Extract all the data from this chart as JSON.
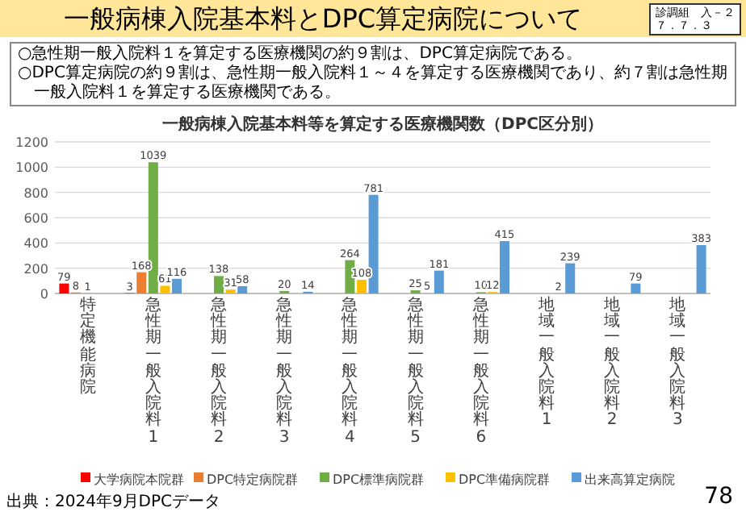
{
  "chart_data": {
    "type": "bar",
    "title": "一般病棟入院基本料とDPC算定病院について",
    "subtitle": "一般病棟入院基本料等を算定する医療機関数（DPC区分別）",
    "annotations": [
      "○急性期一般入院料１を算定する医療機関の約９割は、DPC算定病院である。",
      "○DPC算定病院の約９割は、急性期一般入院料１～４を算定する医療機関であり、約７割は急性期一般入院料１を算定する医療機関である。",
      "診調組　入－２",
      "７．７．３",
      "出典：2024年9月DPCデータ",
      "78"
    ],
    "categories": [
      "特定機能病院",
      "急性期一般入院料1",
      "急性期一般入院料2",
      "急性期一般入院料3",
      "急性期一般入院料4",
      "急性期一般入院料5",
      "急性期一般入院料6",
      "地域一般入院料1",
      "地域一般入院料2",
      "地域一般入院料3"
    ],
    "series": [
      {
        "name": "大学病院本院群",
        "color": "#ff0000",
        "values": [
          79,
          3,
          null,
          null,
          null,
          null,
          null,
          null,
          null,
          null
        ]
      },
      {
        "name": "DPC特定病院群",
        "color": "#ed7d31",
        "values": [
          8,
          168,
          null,
          null,
          null,
          null,
          null,
          null,
          null,
          null
        ]
      },
      {
        "name": "DPC標準病院群",
        "color": "#70ad47",
        "values": [
          1,
          1039,
          138,
          20,
          264,
          25,
          10,
          null,
          null,
          null
        ]
      },
      {
        "name": "DPC準備病院群",
        "color": "#ffc000",
        "values": [
          null,
          61,
          31,
          null,
          108,
          5,
          12,
          2,
          null,
          null
        ]
      },
      {
        "name": "出来高算定病院",
        "color": "#5b9bd5",
        "values": [
          null,
          116,
          58,
          14,
          781,
          181,
          415,
          239,
          79,
          383
        ]
      }
    ],
    "ylim": [
      0,
      1200
    ],
    "yticks": [
      0,
      200,
      400,
      600,
      800,
      1000,
      1200
    ],
    "grid": "y",
    "legend": "bottom",
    "data_labels": true
  }
}
